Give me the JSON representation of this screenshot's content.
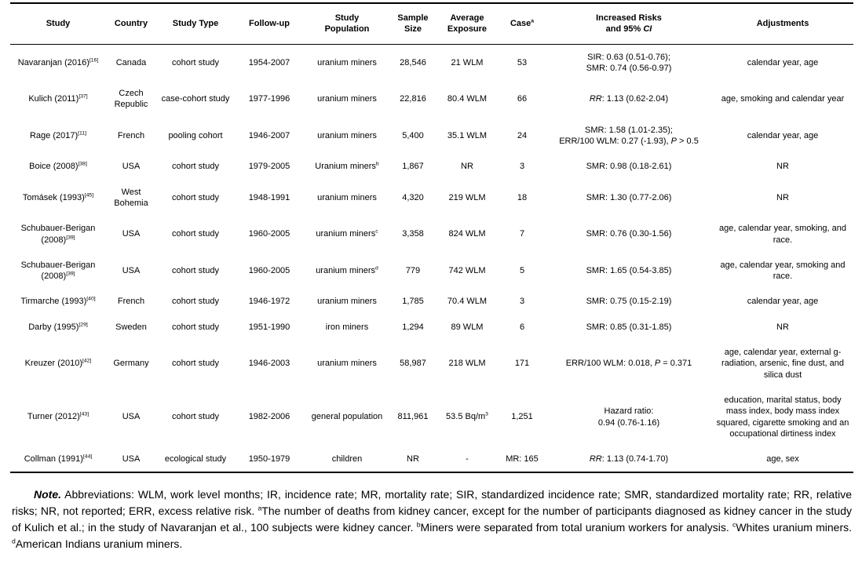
{
  "table": {
    "header": {
      "study": "Study",
      "country": "Country",
      "study_type": "Study Type",
      "follow_up": "Follow-up",
      "population_line1": "Study",
      "population_line2": "Population",
      "sample_line1": "Sample",
      "sample_line2": "Size",
      "exposure_line1": "Average",
      "exposure_line2": "Exposure",
      "case_label": "Case",
      "case_sup": "a",
      "risks_line1": "Increased Risks",
      "risks_line2_prefix": "and 95% ",
      "risks_line2_italic": "CI",
      "adjustments": "Adjustments"
    },
    "rows": [
      {
        "study": "Navaranjan (2016)",
        "ref": "[16]",
        "country": "Canada",
        "type": "cohort study",
        "follow_up": "1954-2007",
        "population": "uranium miners",
        "sample": "28,546",
        "exposure": "21 WLM",
        "cases": "53",
        "risks": [
          [
            {
              "t": "SIR: 0.63 (0.51-0.76);"
            }
          ],
          [
            {
              "t": "SMR: 0.74 (0.56-0.97)"
            }
          ]
        ],
        "adjustments": "calendar year, age"
      },
      {
        "study": "Kulich (2011)",
        "ref": "[37]",
        "country": "Czech Republic",
        "type": "case-cohort study",
        "follow_up": "1977-1996",
        "population": "uranium miners",
        "sample": "22,816",
        "exposure": "80.4 WLM",
        "cases": "66",
        "risks": [
          [
            {
              "t": "RR",
              "i": true
            },
            {
              "t": ": 1.13 (0.62-2.04)"
            }
          ]
        ],
        "adjustments": "age, smoking and calendar year"
      },
      {
        "study": "Rage (2017)",
        "ref": "[11]",
        "country": "French",
        "type": "pooling cohort",
        "follow_up": "1946-2007",
        "population": "uranium miners",
        "sample": "5,400",
        "exposure": "35.1 WLM",
        "cases": "24",
        "risks": [
          [
            {
              "t": "SMR: 1.58 (1.01-2.35);"
            }
          ],
          [
            {
              "t": "ERR/100 WLM: 0.27 (-1.93), "
            },
            {
              "t": "P",
              "i": true
            },
            {
              "t": " > 0.5"
            }
          ]
        ],
        "adjustments": "calendar year, age"
      },
      {
        "study": "Boice (2008)",
        "ref": "[38]",
        "country": "USA",
        "type": "cohort study",
        "follow_up": "1979-2005",
        "population": "Uranium miners",
        "population_sup": "b",
        "sample": "1,867",
        "exposure": "NR",
        "cases": "3",
        "risks": [
          [
            {
              "t": "SMR: 0.98 (0.18-2.61)"
            }
          ]
        ],
        "adjustments": "NR"
      },
      {
        "study": "Tomásek (1993)",
        "ref": "[45]",
        "country": "West Bohemia",
        "type": "cohort study",
        "follow_up": "1948-1991",
        "population": "uranium miners",
        "sample": "4,320",
        "exposure": "219 WLM",
        "cases": "18",
        "risks": [
          [
            {
              "t": "SMR: 1.30 (0.77-2.06)"
            }
          ]
        ],
        "adjustments": "NR"
      },
      {
        "study": "Schubauer-Berigan (2008)",
        "ref": "[39]",
        "country": "USA",
        "type": "cohort study",
        "follow_up": "1960-2005",
        "population": "uranium miners",
        "population_sup": "c",
        "sample": "3,358",
        "exposure": "824 WLM",
        "cases": "7",
        "risks": [
          [
            {
              "t": "SMR: 0.76 (0.30-1.56)"
            }
          ]
        ],
        "adjustments": "age, calendar year, smoking, and race."
      },
      {
        "study": "Schubauer-Berigan (2008)",
        "ref": "[39]",
        "country": "USA",
        "type": "cohort study",
        "follow_up": "1960-2005",
        "population": "uranium miners",
        "population_sup": "d",
        "sample": "779",
        "exposure": "742 WLM",
        "cases": "5",
        "risks": [
          [
            {
              "t": "SMR: 1.65 (0.54-3.85)"
            }
          ]
        ],
        "adjustments": "age, calendar year, smoking and race."
      },
      {
        "study": "Tirmarche (1993)",
        "ref": "[40]",
        "country": "French",
        "type": "cohort study",
        "follow_up": "1946-1972",
        "population": "uranium miners",
        "sample": "1,785",
        "exposure": "70.4 WLM",
        "cases": "3",
        "risks": [
          [
            {
              "t": "SMR: 0.75 (0.15-2.19)"
            }
          ]
        ],
        "adjustments": "calendar year, age"
      },
      {
        "study": "Darby (1995)",
        "ref": "[29]",
        "country": "Sweden",
        "type": "cohort study",
        "follow_up": "1951-1990",
        "population": "iron miners",
        "sample": "1,294",
        "exposure": "89 WLM",
        "cases": "6",
        "risks": [
          [
            {
              "t": "SMR: 0.85 (0.31-1.85)"
            }
          ]
        ],
        "adjustments": "NR"
      },
      {
        "study": "Kreuzer (2010)",
        "ref": "[42]",
        "country": "Germany",
        "type": "cohort study",
        "follow_up": "1946-2003",
        "population": "uranium miners",
        "sample": "58,987",
        "exposure": "218 WLM",
        "cases": "171",
        "risks": [
          [
            {
              "t": "ERR/100 WLM: 0.018, "
            },
            {
              "t": "P",
              "i": true
            },
            {
              "t": " = 0.371"
            }
          ]
        ],
        "adjustments": "age, calendar year, external g-radiation, arsenic, fine dust, and silica dust"
      },
      {
        "study": "Turner (2012)",
        "ref": "[43]",
        "country": "USA",
        "type": "cohort study",
        "follow_up": "1982-2006",
        "population": "general population",
        "sample": "811,961",
        "exposure": "53.5 Bq/m",
        "exposure_sup": "3",
        "cases": "1,251",
        "risks": [
          [
            {
              "t": "Hazard ratio:"
            }
          ],
          [
            {
              "t": "0.94 (0.76-1.16)"
            }
          ]
        ],
        "adjustments": "education, marital status, body mass index, body mass index squared, cigarette smoking and an occupational dirtiness index"
      },
      {
        "study": "Collman (1991)",
        "ref": "[44]",
        "country": "USA",
        "type": "ecological study",
        "follow_up": "1950-1979",
        "population": "children",
        "sample": "NR",
        "exposure": "-",
        "cases": "MR: 165",
        "risks": [
          [
            {
              "t": "RR",
              "i": true
            },
            {
              "t": ": 1.13 (0.74-1.70)"
            }
          ]
        ],
        "adjustments": "age, sex"
      }
    ]
  },
  "note": {
    "segments": [
      {
        "t": "Note.",
        "bi": true
      },
      {
        "t": " Abbreviations: WLM, work level months; IR, incidence rate; MR, mortality rate; SIR, standardized incidence rate; SMR, standardized mortality rate; RR, relative risks; NR, not reported; ERR, excess relative risk. "
      },
      {
        "t": "a",
        "sup": true
      },
      {
        "t": "The number of deaths from kidney cancer, except for the number of participants diagnosed as kidney cancer in the study of Kulich et al.; in the study of Navaranjan et al., 100 subjects were kidney cancer. "
      },
      {
        "t": "b",
        "sup": true
      },
      {
        "t": "Miners were separated from total uranium workers for analysis. "
      },
      {
        "t": "c",
        "sup": true
      },
      {
        "t": "Whites uranium miners. "
      },
      {
        "t": "d",
        "sup": true
      },
      {
        "t": "American Indians uranium miners."
      }
    ]
  }
}
